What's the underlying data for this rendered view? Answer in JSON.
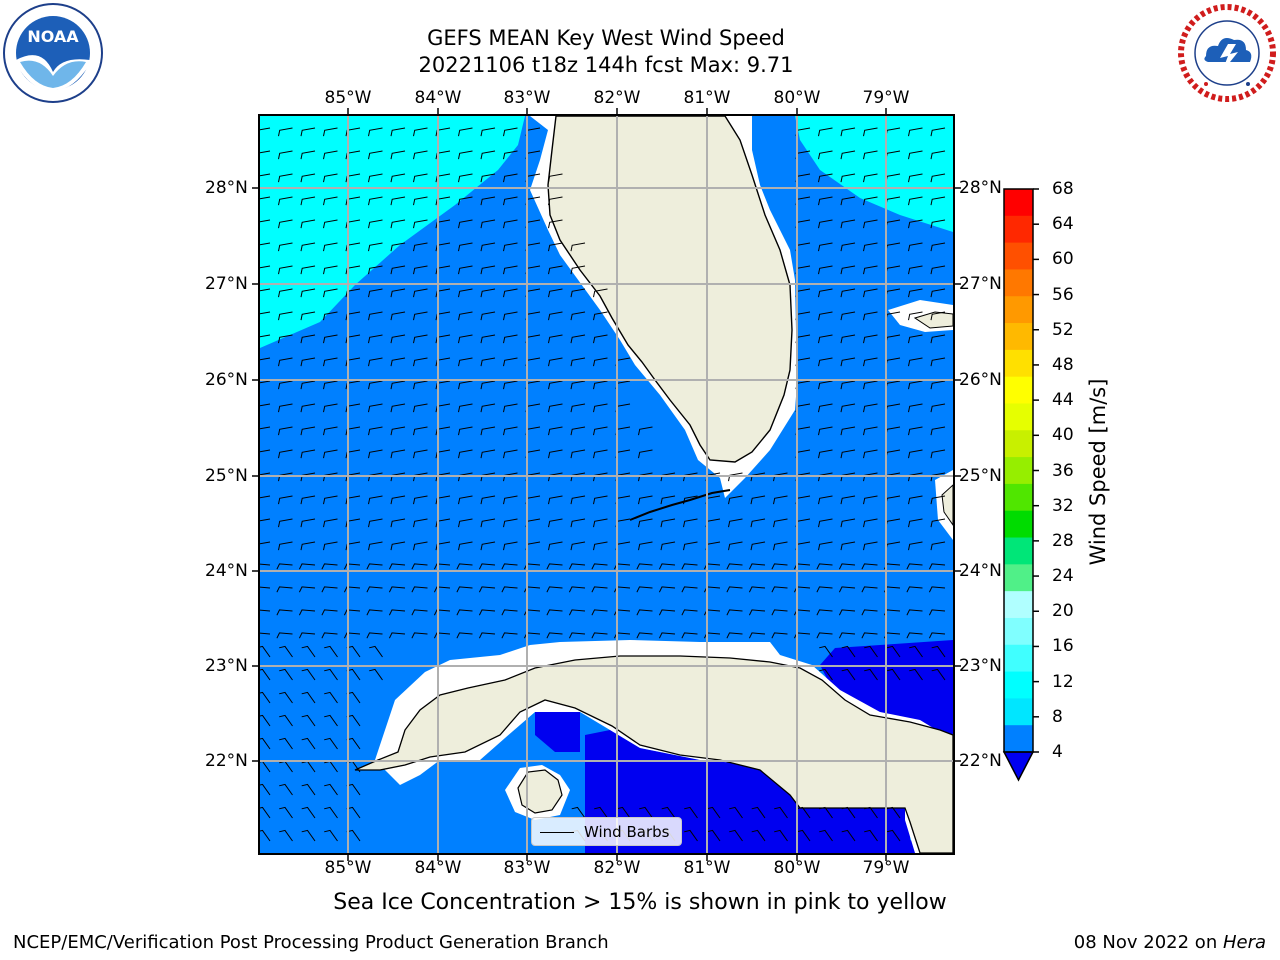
{
  "header": {
    "title_line1": "GEFS MEAN Key West Wind Speed",
    "title_line2": "20221106 t18z 144h fcst   Max: 9.71"
  },
  "logos": {
    "left": "NOAA",
    "right": "NATIONAL WEATHER SERVICE",
    "left_ring_text": "NATIONAL OCEANIC AND ATMOSPHERIC ADMINISTRATION",
    "left_bottom_text": "U.S. DEPARTMENT OF COMMERCE"
  },
  "map": {
    "lon_labels": [
      "85°W",
      "84°W",
      "83°W",
      "82°W",
      "81°W",
      "80°W",
      "79°W"
    ],
    "lat_labels": [
      "28°N",
      "27°N",
      "26°N",
      "25°N",
      "24°N",
      "23°N",
      "22°N"
    ],
    "legend_label": "Wind Barbs",
    "colors": {
      "land": "#eeeedc",
      "ocean_4_8": "#0080ff",
      "ocean_8_12": "#00ffff",
      "low_wind": "#0000f0"
    }
  },
  "colorbar": {
    "label": "Wind Speed [m/s]",
    "ticks": [
      "68",
      "64",
      "60",
      "56",
      "52",
      "48",
      "44",
      "40",
      "36",
      "32",
      "28",
      "24",
      "20",
      "16",
      "12",
      "8",
      "4"
    ],
    "colors_top_to_bottom": [
      "#ff0000",
      "#ff2800",
      "#ff5000",
      "#ff7800",
      "#ff9900",
      "#ffb900",
      "#ffe000",
      "#ffff00",
      "#e6ff00",
      "#c8f000",
      "#96ee00",
      "#50e600",
      "#00dc00",
      "#00e678",
      "#50f088",
      "#b0ffff",
      "#80ffff",
      "#40ffff",
      "#00ffff",
      "#00e6ff",
      "#0080ff"
    ]
  },
  "notes": {
    "sea_ice": "Sea Ice Concentration > 15% is shown in pink to yellow"
  },
  "footer": {
    "left": "NCEP/EMC/Verification Post Processing Product Generation Branch",
    "right_date": "08 Nov 2022 on ",
    "right_host": "Hera"
  }
}
